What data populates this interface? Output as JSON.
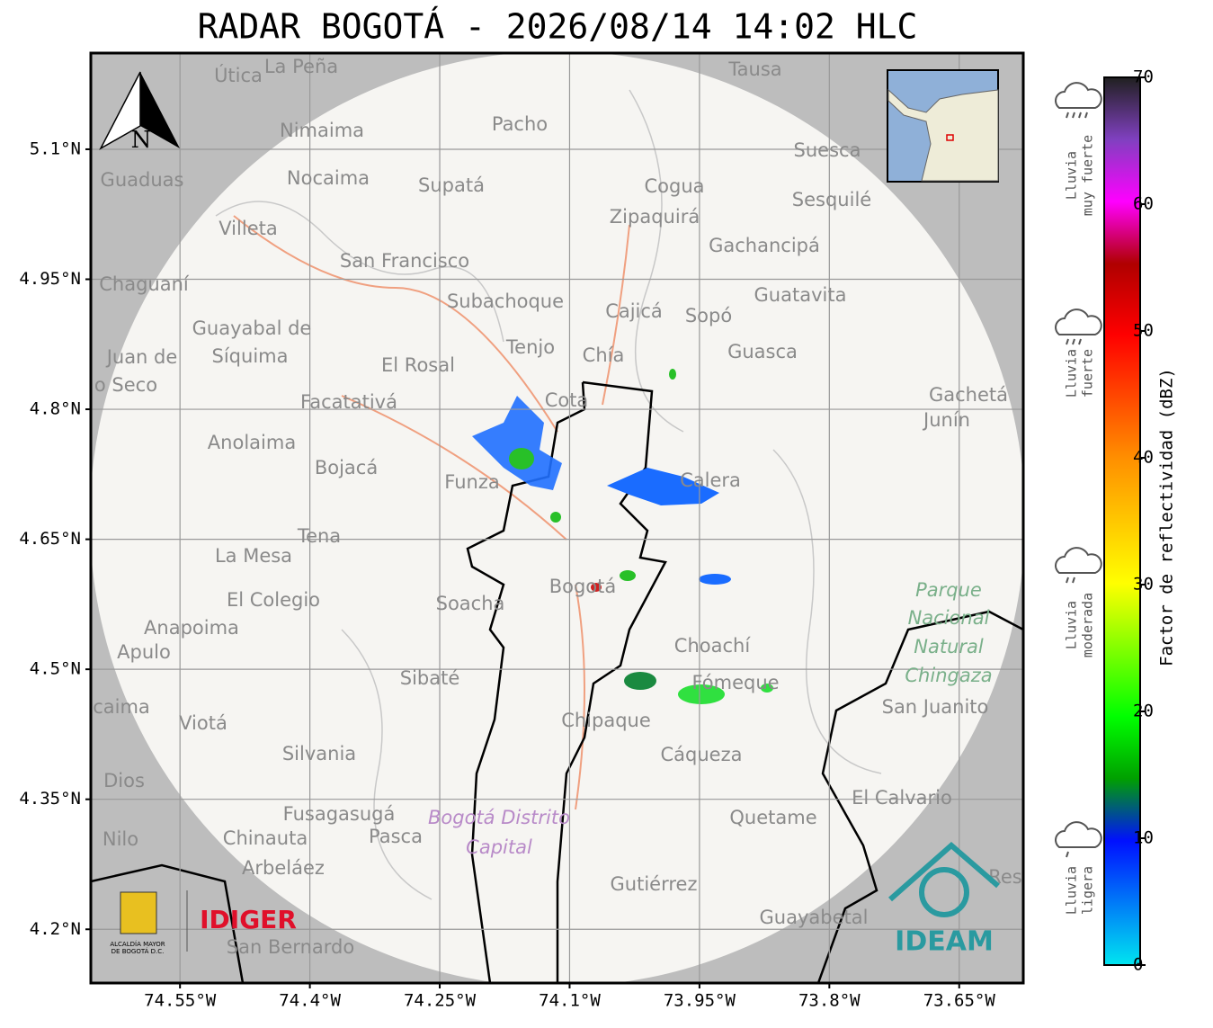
{
  "title": "RADAR BOGOTÁ - 2026/08/14 14:02 HLC",
  "map": {
    "xlim": [
      -74.653,
      -73.576
    ],
    "ylim": [
      4.138,
      5.211
    ],
    "xticks": [
      {
        "value": -74.55,
        "label": "74.55°W"
      },
      {
        "value": -74.4,
        "label": "74.4°W"
      },
      {
        "value": -74.25,
        "label": "74.25°W"
      },
      {
        "value": -74.1,
        "label": "74.1°W"
      },
      {
        "value": -73.95,
        "label": "73.95°W"
      },
      {
        "value": -73.8,
        "label": "73.8°W"
      },
      {
        "value": -73.65,
        "label": "73.65°W"
      }
    ],
    "yticks": [
      {
        "value": 5.1,
        "label": "5.1°N"
      },
      {
        "value": 4.95,
        "label": "4.95°N"
      },
      {
        "value": 4.8,
        "label": "4.8°N"
      },
      {
        "value": 4.65,
        "label": "4.65°N"
      },
      {
        "value": 4.5,
        "label": "4.5°N"
      },
      {
        "value": 4.35,
        "label": "4.35°N"
      },
      {
        "value": 4.2,
        "label": "4.2°N"
      }
    ],
    "north": "N",
    "places": [
      "Útica",
      "La Peña",
      "Tausa",
      "Pacho",
      "Nimaima",
      "Guaduas",
      "Nocaima",
      "Supatá",
      "Cogua",
      "Suesca",
      "Sesquilé",
      "Zipaquirá",
      "Villeta",
      "Gachancipá",
      "San Francisco",
      "Chaguaní",
      "Guatavita",
      "Subachoque",
      "Cajicá",
      "Sopó",
      "Guayabal de",
      "Síquima",
      "Tenjo",
      "Chía",
      "Guasca",
      "Juan de",
      "o Seco",
      "El Rosal",
      "Facatativá",
      "Cota",
      "Gachetá",
      "Junín",
      "Anolaima",
      "Bojacá",
      "Funza",
      "Calera",
      "Tena",
      "La Mesa",
      "El Colegio",
      "Soacha",
      "Bogotá",
      "Anapoima",
      "Apulo",
      "Choachí",
      "Sibaté",
      "Fómeque",
      "San Juanito",
      "caima",
      "Viotá",
      "Chipaque",
      "Silvania",
      "Cáqueza",
      "Dios",
      "El Calvario",
      "Fusagasugá",
      "Quetame",
      "Nilo",
      "Chinauta",
      "Pasca",
      "Arbeláez",
      "Gutiérrez",
      "Guayabetal",
      "San Bernardo",
      "Res"
    ],
    "parks": [
      "Parque",
      "Nacional",
      "Natural",
      "Chingaza",
      "Bogotá Distrito",
      "Capital"
    ],
    "logos": {
      "left_small": "ALCALDÍA MAYOR",
      "left_small2": "DE BOGOTÁ D.C.",
      "left": "IDIGER",
      "right": "IDEAM"
    }
  },
  "colorbar": {
    "label": "Factor de reflectividad (dBZ)",
    "lim": [
      0,
      70
    ],
    "ticks": [
      0,
      10,
      20,
      30,
      40,
      50,
      60,
      70
    ]
  },
  "rain_legend": [
    [
      "Lluvia",
      "muy fuerte"
    ],
    [
      "Lluvia",
      "fuerte"
    ],
    [
      "Lluvia",
      "moderada"
    ],
    [
      "Lluvia",
      "ligera"
    ]
  ]
}
